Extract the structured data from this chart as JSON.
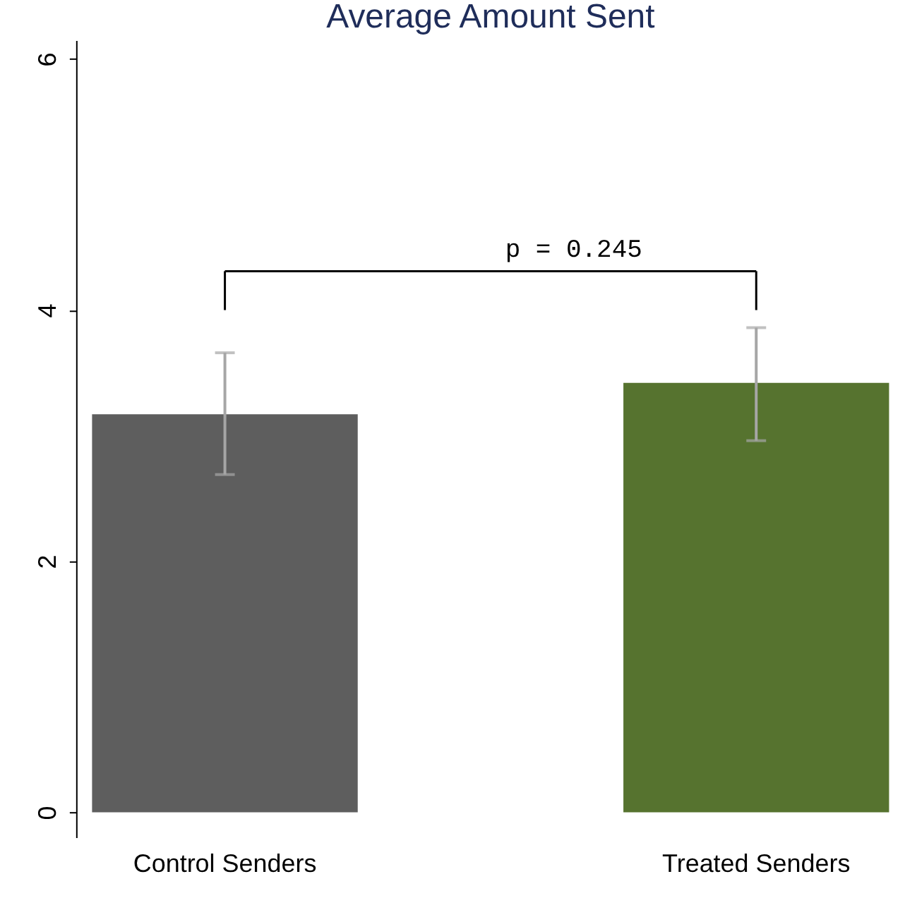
{
  "chart_data": {
    "type": "bar",
    "title": "Average Amount Sent",
    "categories": [
      "Control Senders",
      "Treated Senders"
    ],
    "values": [
      3.17,
      3.42
    ],
    "colors": [
      "#5e5e5e",
      "#56732f"
    ],
    "errors": [
      [
        2.69,
        3.66
      ],
      [
        2.96,
        3.86
      ]
    ],
    "ylim": [
      -0.2,
      6.15
    ],
    "yticks": [
      0,
      2,
      4,
      6
    ],
    "grid": false,
    "annotations": [
      "p = 0.245"
    ]
  }
}
